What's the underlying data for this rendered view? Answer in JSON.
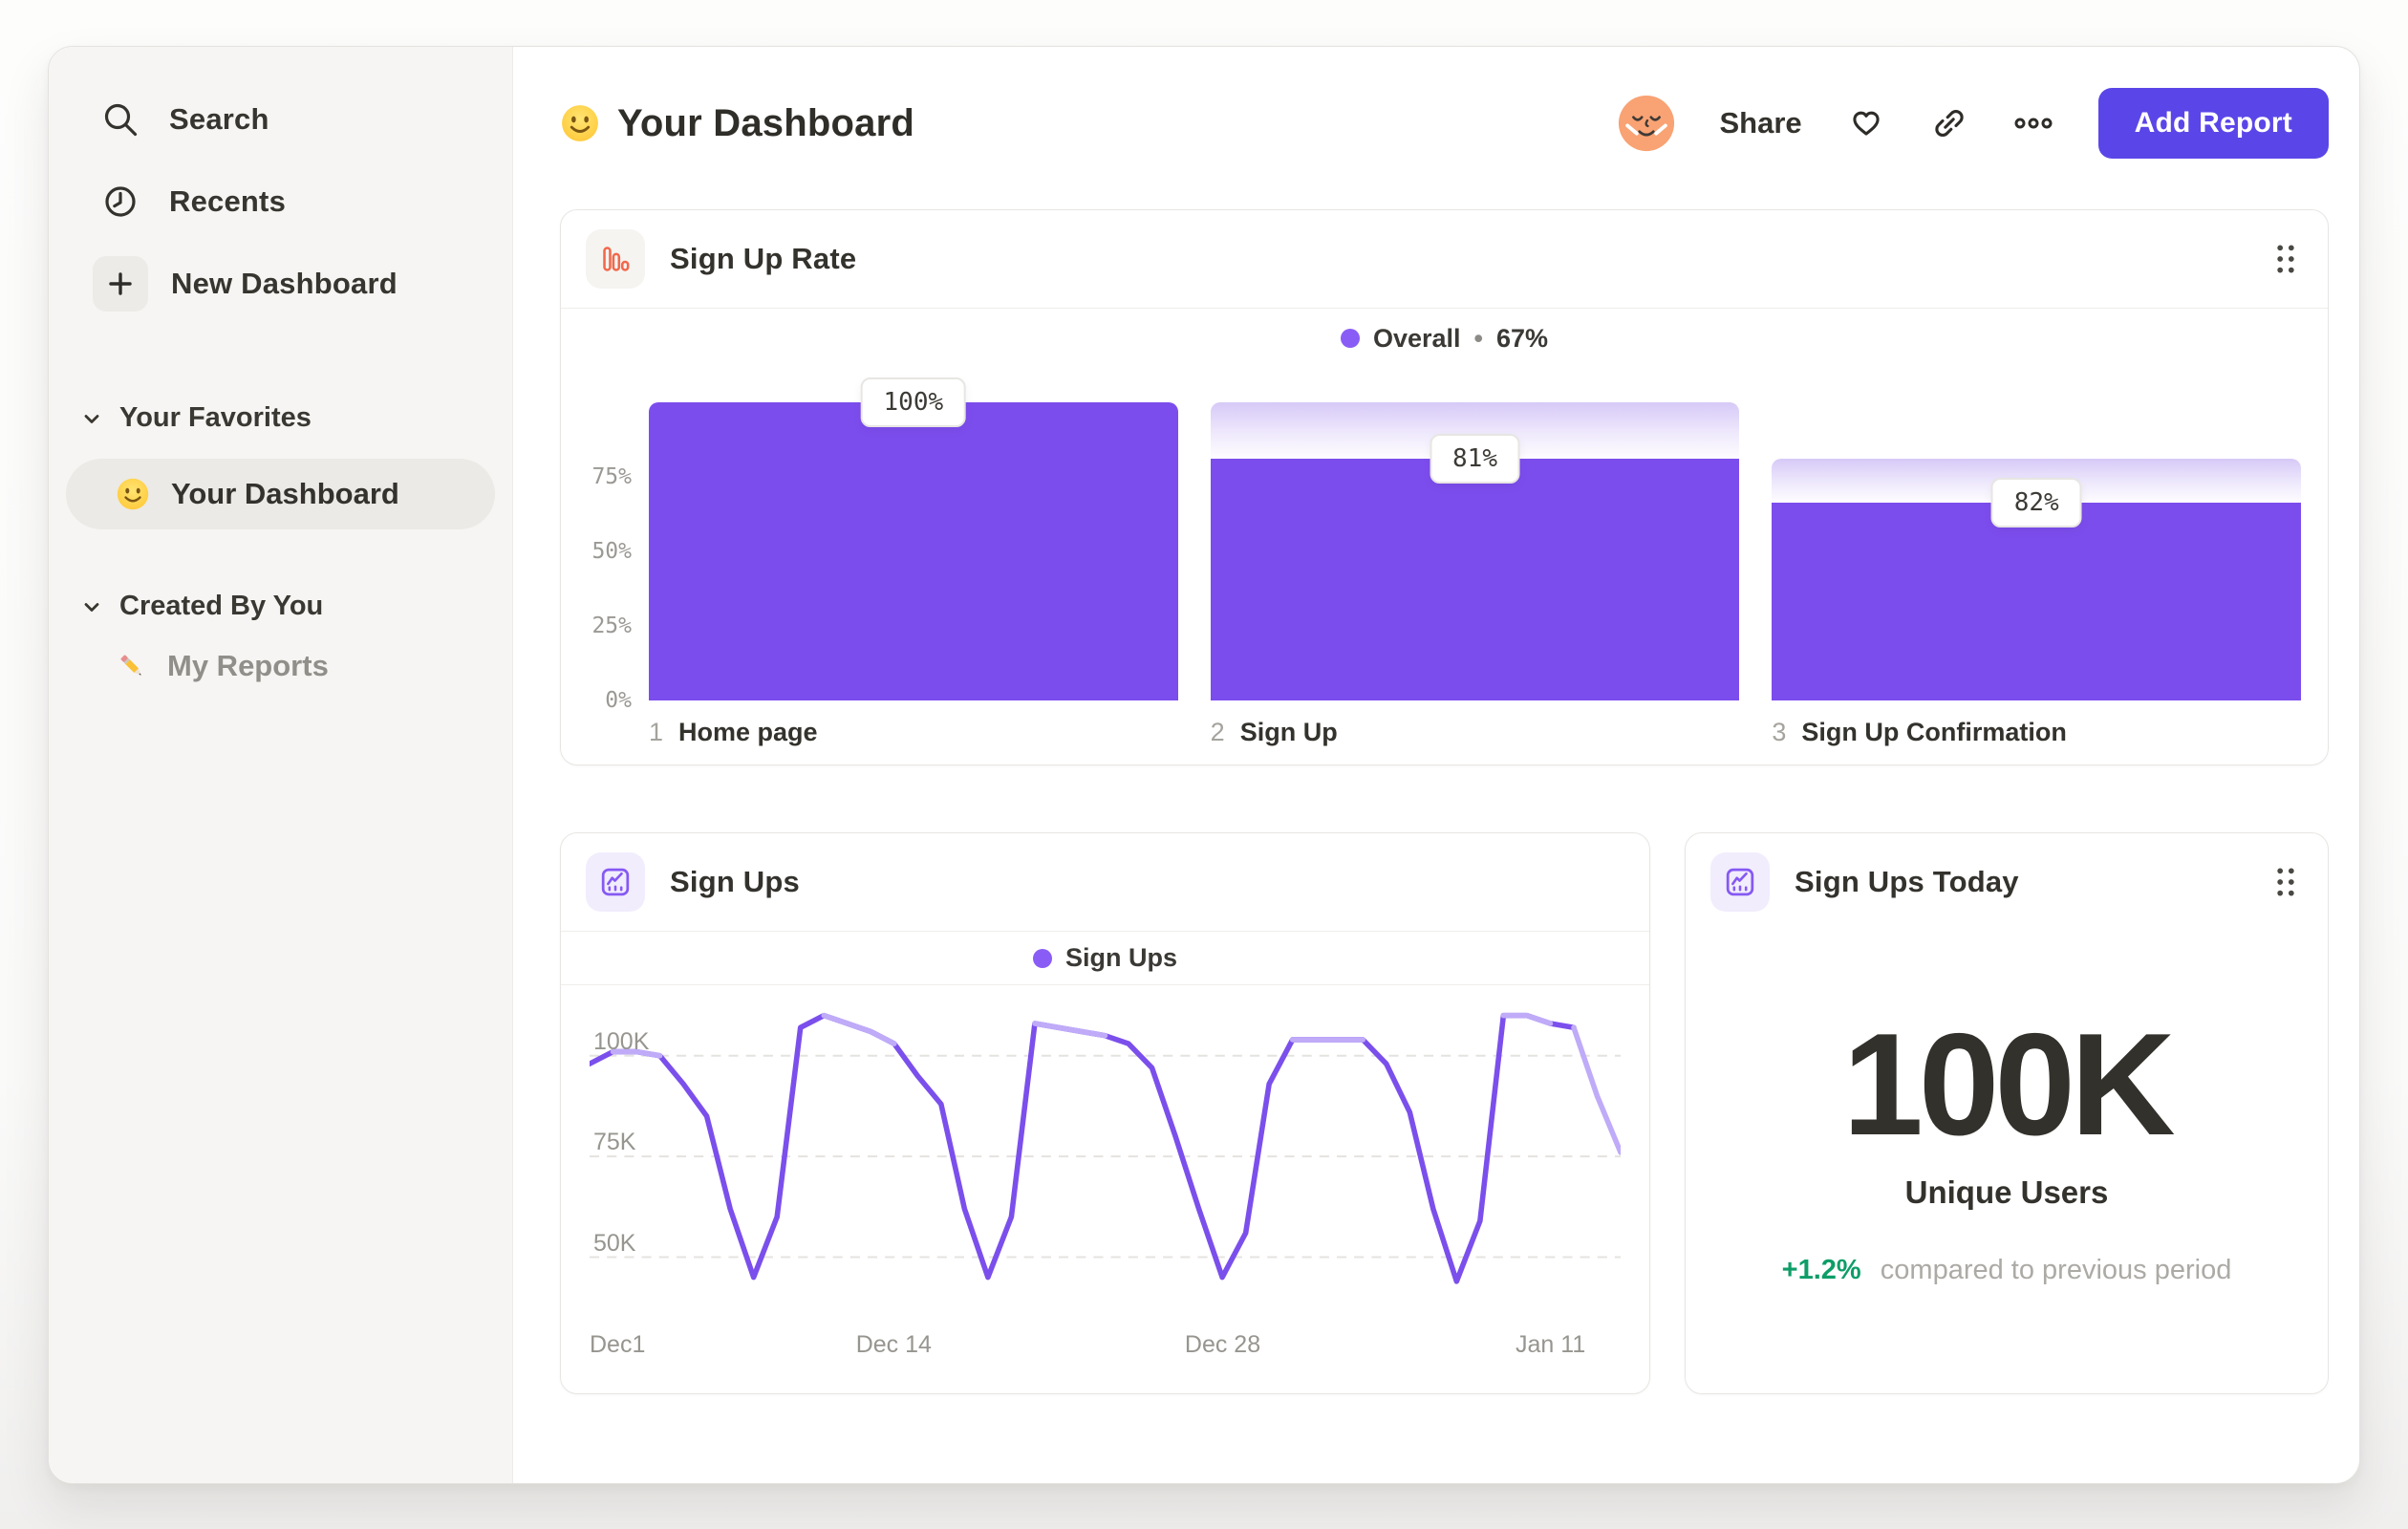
{
  "sidebar": {
    "items": [
      {
        "label": "Search"
      },
      {
        "label": "Recents"
      },
      {
        "label": "New Dashboard"
      }
    ],
    "favorites_section": {
      "title": "Your Favorites",
      "item": {
        "label": "Your Dashboard"
      }
    },
    "created_section": {
      "title": "Created By You",
      "item": {
        "label": "My Reports"
      }
    }
  },
  "header": {
    "title": "Your Dashboard",
    "share_label": "Share",
    "add_report_label": "Add Report"
  },
  "funnel_card": {
    "title": "Sign Up Rate",
    "legend_label": "Overall",
    "legend_sep": "•",
    "legend_value": "67%"
  },
  "line_card": {
    "title": "Sign Ups",
    "legend_label": "Sign Ups"
  },
  "today_card": {
    "title": "Sign Ups Today",
    "value": "100K",
    "unit_label": "Unique Users",
    "delta": "+1.2%",
    "delta_note": "compared to previous period"
  },
  "chart_data": [
    {
      "id": "signup-rate-funnel",
      "type": "bar",
      "title": "Sign Up Rate",
      "legend": {
        "label": "Overall",
        "value": "67%"
      },
      "ylim": [
        0,
        100
      ],
      "y_ticks": [
        {
          "label": "75%",
          "value": 75
        },
        {
          "label": "50%",
          "value": 50
        },
        {
          "label": "25%",
          "value": 25
        },
        {
          "label": "0%",
          "value": 0
        }
      ],
      "step_indices": [
        "1",
        "2",
        "3"
      ],
      "categories": [
        "Home page",
        "Sign Up",
        "Sign Up Confirmation"
      ],
      "values": [
        100,
        81,
        82
      ],
      "value_labels": [
        "100%",
        "81%",
        "82%"
      ],
      "overall_heights": [
        100,
        81,
        66.4
      ],
      "prev_heights": [
        100,
        100,
        81
      ],
      "bar_color": "#7C4DED"
    },
    {
      "id": "sign-ups-line",
      "type": "line",
      "title": "Sign Ups",
      "legend": "Sign Ups",
      "unit": "K",
      "ylim": [
        34,
        117.5
      ],
      "y_ticks": [
        {
          "label": "100K",
          "value": 100
        },
        {
          "label": "75K",
          "value": 75
        },
        {
          "label": "50K",
          "value": 50
        }
      ],
      "x_ticks": [
        {
          "label": "Dec1",
          "pos": 0.0
        },
        {
          "label": "Dec 14",
          "pos": 0.295
        },
        {
          "label": "Dec 28",
          "pos": 0.614
        },
        {
          "label": "Jan 11",
          "pos": 0.932
        }
      ],
      "values": [
        98,
        101,
        101,
        100,
        93,
        85,
        62,
        45,
        60,
        107,
        110,
        108,
        106,
        103,
        95,
        88,
        62,
        45,
        60,
        108,
        107,
        106,
        105,
        103,
        97,
        80,
        62,
        45,
        56,
        93,
        104,
        104,
        104,
        104,
        98,
        86,
        62,
        44,
        59,
        110,
        110,
        108,
        107,
        90,
        76
      ],
      "line_color": "#7B4FEC",
      "highlight_color": "#BFABF8",
      "highlight_ranges": [
        [
          1,
          3
        ],
        [
          10,
          13
        ],
        [
          19,
          22
        ],
        [
          30,
          33
        ],
        [
          39,
          41
        ]
      ],
      "tail_light_range": [
        42,
        44
      ],
      "grid": "dashed-horizontal",
      "legend_position": "top-center"
    }
  ]
}
